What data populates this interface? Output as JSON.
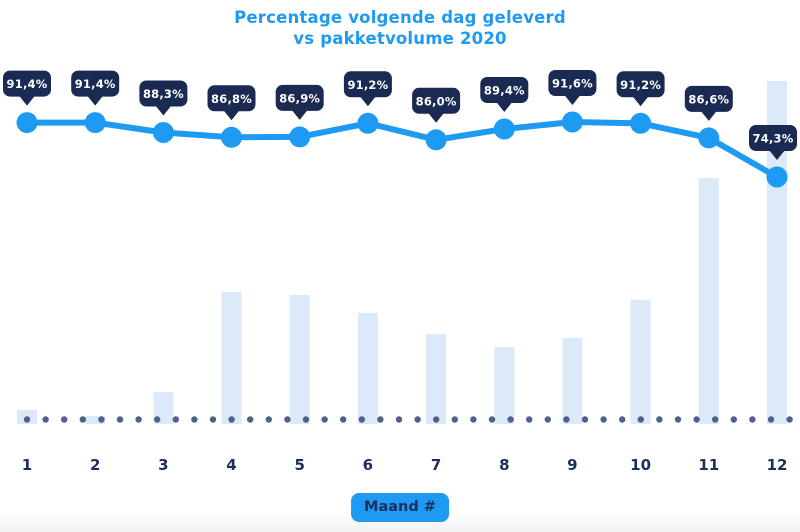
{
  "title": {
    "line1": "Percentage volgende dag geleverd",
    "line2": "vs pakketvolume 2020"
  },
  "chart_data": {
    "type": "line+bar combo",
    "title": "Percentage volgende dag geleverd vs pakketvolume 2020",
    "categories": [
      "1",
      "2",
      "3",
      "4",
      "5",
      "6",
      "7",
      "8",
      "9",
      "10",
      "11",
      "12"
    ],
    "xlabel": "Maand #",
    "ylabel": "",
    "legend": "none",
    "grid": false,
    "series": [
      {
        "name": "Percentage volgende dag geleverd",
        "type": "line",
        "unit": "%",
        "values": [
          91.4,
          91.4,
          88.3,
          86.8,
          86.9,
          91.2,
          86.0,
          89.4,
          91.6,
          91.2,
          86.6,
          74.3
        ],
        "labels": [
          "91,4%",
          "91,4%",
          "88,3%",
          "86,8%",
          "86,9%",
          "91,2%",
          "86,0%",
          "89,4%",
          "91,6%",
          "91,2%",
          "86,6%",
          "74,3%"
        ]
      },
      {
        "name": "Pakketvolume 2020",
        "type": "bar",
        "unit": "relative index (estimated from bar heights, max month = 100)",
        "values": [
          4.1,
          2.3,
          9.3,
          38.5,
          37.6,
          32.4,
          26.2,
          22.4,
          25.1,
          36.2,
          71.7,
          100
        ]
      }
    ],
    "baseline_style": "dotted row of dots along x-axis"
  },
  "colors": {
    "accent_blue": "#1e9af3",
    "tooltip_navy": "#1a2a52",
    "label_navy": "#1c2e5e",
    "bar_fill": "#dbe9f9",
    "baseline_dot": "#4f608c",
    "tooltip_text": "#ffffff"
  }
}
